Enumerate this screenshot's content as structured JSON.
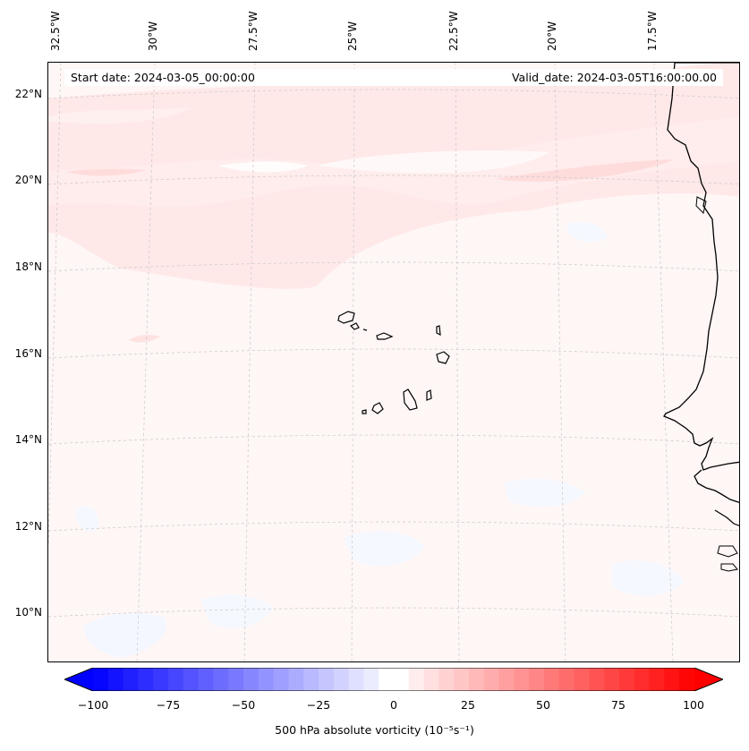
{
  "map": {
    "info": {
      "start_date": "Start date: 2024-03-05_00:00:00",
      "valid_date": "Valid_date: 2024-03-05T16:00:00.00"
    },
    "longitude_labels": [
      "32.5°W",
      "30°W",
      "27.5°W",
      "25°W",
      "22.5°W",
      "20°W",
      "17.5°W"
    ],
    "latitude_labels": [
      "22°N",
      "20°N",
      "18°N",
      "16°N",
      "14°N",
      "12°N",
      "10°N"
    ],
    "colorbar": {
      "label": "500 hPa absolute vorticity (10⁻⁵s⁻¹)",
      "ticks": [
        "−100",
        "−75",
        "−50",
        "−25",
        "0",
        "25",
        "50",
        "75",
        "100"
      ],
      "min": -100,
      "max": 100,
      "low_color": "#0000ff",
      "mid_color": "#ffffff",
      "high_color": "#ff0000"
    }
  }
}
